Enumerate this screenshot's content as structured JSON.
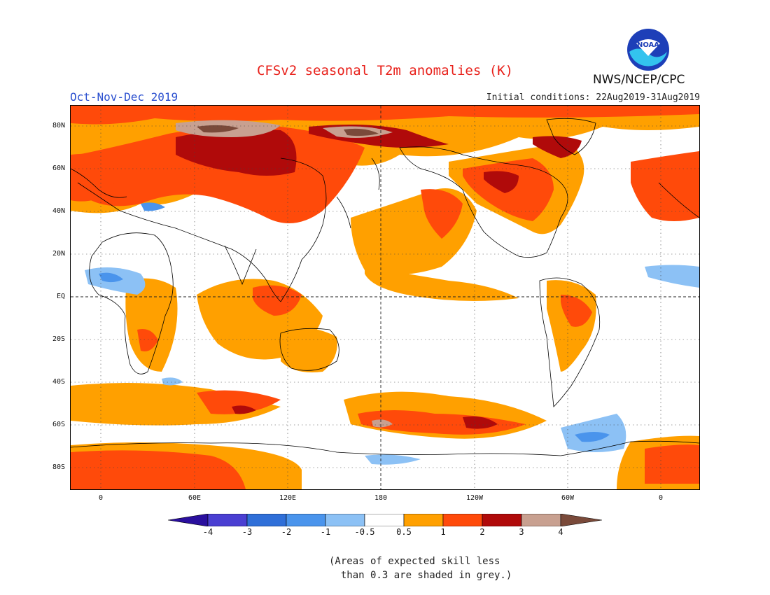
{
  "header": {
    "title": "CFSv2 seasonal T2m anomalies (K)",
    "season": "Oct-Nov-Dec 2019",
    "initial_conditions": "Initial conditions: 22Aug2019-31Aug2019",
    "agency": "NWS/NCEP/CPC",
    "logo_text": "NOAA"
  },
  "map": {
    "lat_labels": [
      "80N",
      "60N",
      "40N",
      "20N",
      "EQ",
      "20S",
      "40S",
      "60S",
      "80S"
    ],
    "lon_labels": [
      "0",
      "60E",
      "120E",
      "180",
      "120W",
      "60W",
      "0"
    ]
  },
  "legend": {
    "labels": [
      "-4",
      "-3",
      "-2",
      "-1",
      "-0.5",
      "0.5",
      "1",
      "2",
      "3",
      "4"
    ],
    "colors": [
      "#2a0f9e",
      "#4a3fd2",
      "#2f6fd8",
      "#4a94ec",
      "#8cc1f5",
      "#ffffff",
      "#ffa000",
      "#ff4a0a",
      "#b00a0a",
      "#c8a090",
      "#7a4a3a"
    ]
  },
  "note": {
    "line1": "(Areas of expected skill less",
    "line2": "than 0.3 are shaded in grey.)"
  },
  "colors": {
    "title": "#e8201a",
    "season": "#2a4fcf",
    "anomaly_0_5_1": "#ffa000",
    "anomaly_1_2": "#ff4a0a",
    "anomaly_2_3": "#b00a0a",
    "anomaly_3_4": "#c8a090",
    "anomaly_gt_4": "#7a4a3a",
    "anomaly_neg": "#8cc1f5"
  }
}
